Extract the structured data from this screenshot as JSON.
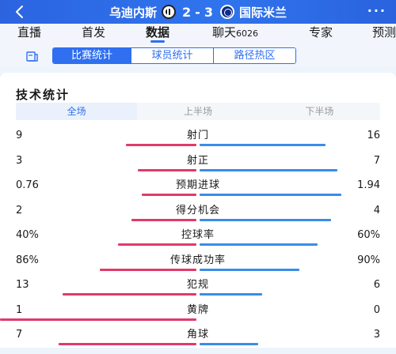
{
  "header": {
    "home_team": "乌迪内斯",
    "away_team": "国际米兰",
    "home_score": "2",
    "separator": "-",
    "away_score": "3",
    "more": "···"
  },
  "tabs": [
    {
      "label": "直播"
    },
    {
      "label": "首发"
    },
    {
      "label": "数据"
    },
    {
      "label": "聊天",
      "count": "6026"
    },
    {
      "label": "专家"
    },
    {
      "label": "预测"
    }
  ],
  "subtabs": [
    "比赛统计",
    "球员统计",
    "路径热区"
  ],
  "section_title": "技术统计",
  "periods": [
    "全场",
    "上半场",
    "下半场"
  ],
  "colors": {
    "home": "#e03a6a",
    "away": "#3a8ce8",
    "accent": "#2f6ff0"
  },
  "stats": [
    {
      "label": "射门",
      "home": "9",
      "away": "16",
      "home_share": 0.36,
      "away_share": 0.64
    },
    {
      "label": "射正",
      "home": "3",
      "away": "7",
      "home_share": 0.3,
      "away_share": 0.7
    },
    {
      "label": "预期进球",
      "home": "0.76",
      "away": "1.94",
      "home_share": 0.28,
      "away_share": 0.72
    },
    {
      "label": "得分机会",
      "home": "2",
      "away": "4",
      "home_share": 0.33,
      "away_share": 0.67
    },
    {
      "label": "控球率",
      "home": "40%",
      "away": "60%",
      "home_share": 0.4,
      "away_share": 0.6
    },
    {
      "label": "传球成功率",
      "home": "86%",
      "away": "90%",
      "home_share": 0.49,
      "away_share": 0.51
    },
    {
      "label": "犯规",
      "home": "13",
      "away": "6",
      "home_share": 0.68,
      "away_share": 0.32
    },
    {
      "label": "黄牌",
      "home": "1",
      "away": "0",
      "home_share": 1.0,
      "away_share": 0.0
    },
    {
      "label": "角球",
      "home": "7",
      "away": "3",
      "home_share": 0.7,
      "away_share": 0.3
    }
  ]
}
